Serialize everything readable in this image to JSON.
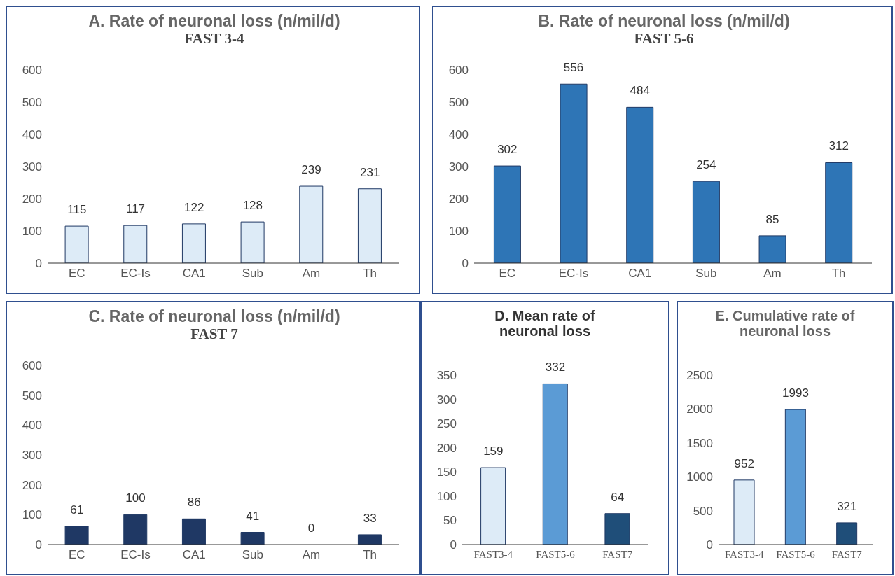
{
  "chart_data": [
    {
      "type": "bar",
      "title": "A. Rate of neuronal loss (n/mil/d)",
      "subtitle": "FAST 3-4",
      "categories": [
        "EC",
        "EC-Is",
        "CA1",
        "Sub",
        "Am",
        "Th"
      ],
      "values": [
        115,
        117,
        122,
        128,
        239,
        231
      ],
      "color": "#ddebf7",
      "ylim": [
        0,
        600
      ],
      "yticks": [
        0,
        100,
        200,
        300,
        400,
        500,
        600
      ],
      "data_labels": true,
      "grid": false
    },
    {
      "type": "bar",
      "title": "B. Rate of neuronal loss (n/mil/d)",
      "subtitle": "FAST 5-6",
      "categories": [
        "EC",
        "EC-Is",
        "CA1",
        "Sub",
        "Am",
        "Th"
      ],
      "values": [
        302,
        556,
        484,
        254,
        85,
        312
      ],
      "color": "#2e75b6",
      "ylim": [
        0,
        600
      ],
      "yticks": [
        0,
        100,
        200,
        300,
        400,
        500,
        600
      ],
      "data_labels": true,
      "grid": false
    },
    {
      "type": "bar",
      "title": "C. Rate of neuronal loss (n/mil/d)",
      "subtitle": "FAST 7",
      "categories": [
        "EC",
        "EC-Is",
        "CA1",
        "Sub",
        "Am",
        "Th"
      ],
      "values": [
        61,
        100,
        86,
        41,
        0,
        33
      ],
      "color": "#1f3864",
      "ylim": [
        0,
        600
      ],
      "yticks": [
        0,
        100,
        200,
        300,
        400,
        500,
        600
      ],
      "data_labels": true,
      "grid": false
    },
    {
      "type": "bar",
      "title": "D. Mean rate of neuronal loss",
      "categories": [
        "FAST3-4",
        "FAST5-6",
        "FAST7"
      ],
      "values": [
        159,
        332,
        64
      ],
      "colors": [
        "#ddebf7",
        "#5b9bd5",
        "#1f4e79"
      ],
      "ylim": [
        0,
        350
      ],
      "yticks": [
        0,
        50,
        100,
        150,
        200,
        250,
        300,
        350
      ],
      "data_labels": true,
      "grid": false
    },
    {
      "type": "bar",
      "title": "E. Cumulative rate of neuronal loss",
      "categories": [
        "FAST3-4",
        "FAST5-6",
        "FAST7"
      ],
      "values": [
        952,
        1993,
        321
      ],
      "colors": [
        "#ddebf7",
        "#5b9bd5",
        "#1f4e79"
      ],
      "ylim": [
        0,
        2500
      ],
      "yticks": [
        0,
        500,
        1000,
        1500,
        2000,
        2500
      ],
      "data_labels": true,
      "grid": false
    }
  ]
}
